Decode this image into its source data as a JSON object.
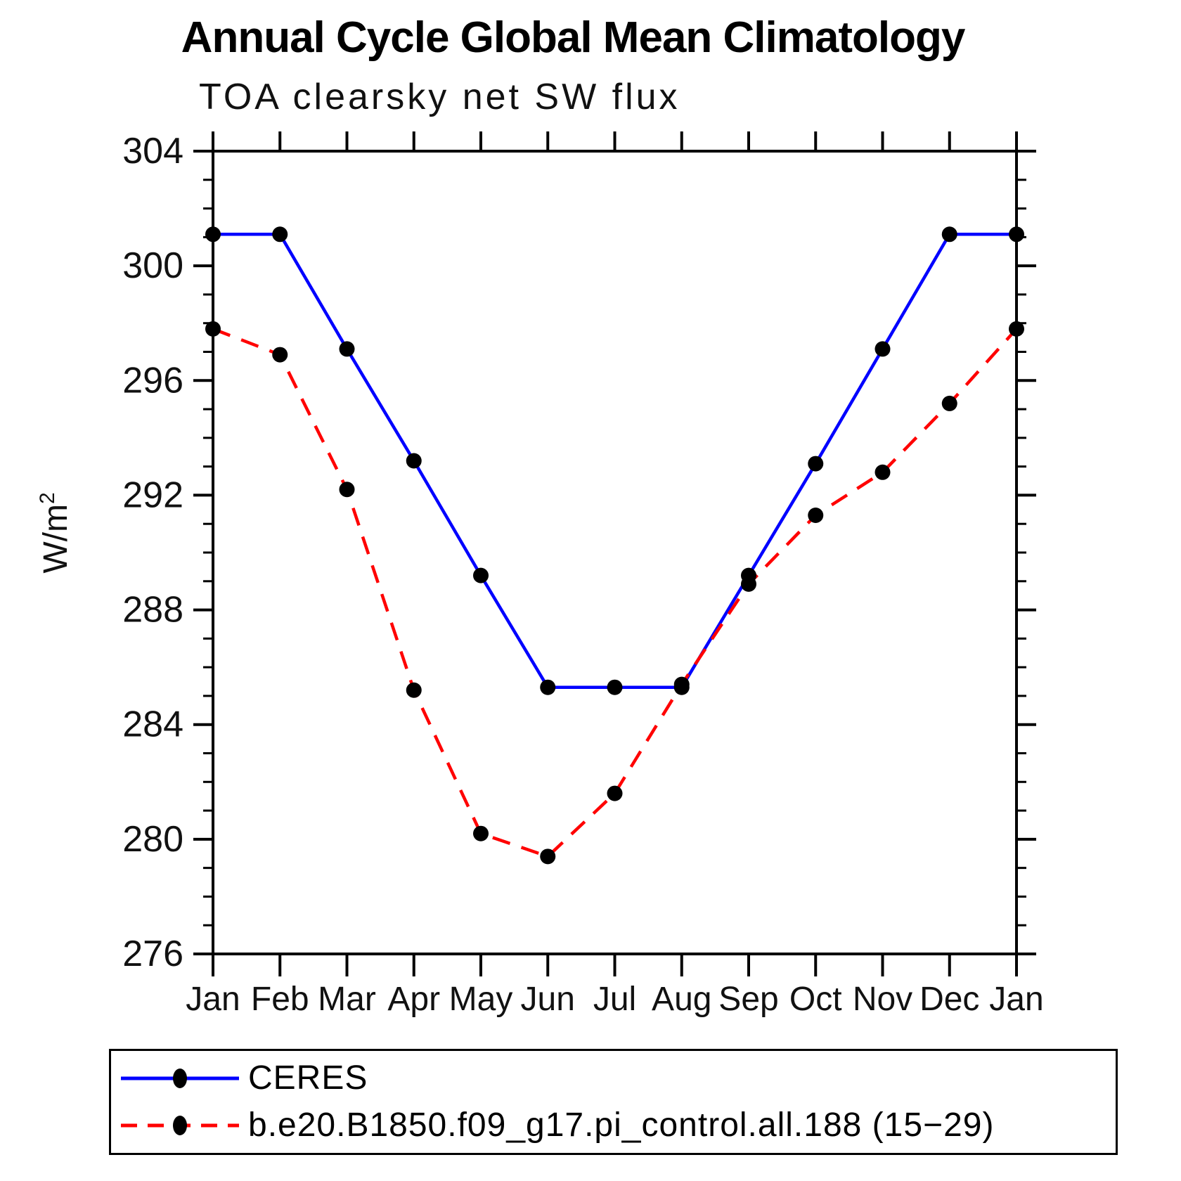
{
  "chart_data": {
    "type": "line",
    "title": "Annual Cycle Global Mean Climatology",
    "subtitle": "TOA clearsky net SW flux",
    "ylabel": {
      "text": "W/m",
      "superscript": "2"
    },
    "ylim": [
      276,
      304
    ],
    "y_major_step": 4,
    "y_minor_step": 1,
    "y_tick_labels": [
      "276",
      "280",
      "284",
      "288",
      "292",
      "296",
      "300",
      "304"
    ],
    "categories": [
      "Jan",
      "Feb",
      "Mar",
      "Apr",
      "May",
      "Jun",
      "Jul",
      "Aug",
      "Sep",
      "Oct",
      "Nov",
      "Dec",
      "Jan"
    ],
    "grid": false,
    "legend_position": "bottom",
    "marker_color": "#000000",
    "frame_color": "#000000",
    "series": [
      {
        "name": "CERES",
        "color": "#0000ff",
        "line_style": "solid",
        "marker": "black-dot",
        "values": [
          301.1,
          301.1,
          297.1,
          293.2,
          289.2,
          285.3,
          285.3,
          285.3,
          289.2,
          293.1,
          297.1,
          301.1,
          301.1
        ]
      },
      {
        "name": "b.e20.B1850.f09_g17.pi_control.all.188 (15−29)",
        "color": "#ff0000",
        "line_style": "dashed",
        "marker": "black-dot",
        "values": [
          297.8,
          296.9,
          292.2,
          285.2,
          280.2,
          279.4,
          281.6,
          285.4,
          288.9,
          291.3,
          292.8,
          295.2,
          297.8
        ]
      }
    ]
  }
}
